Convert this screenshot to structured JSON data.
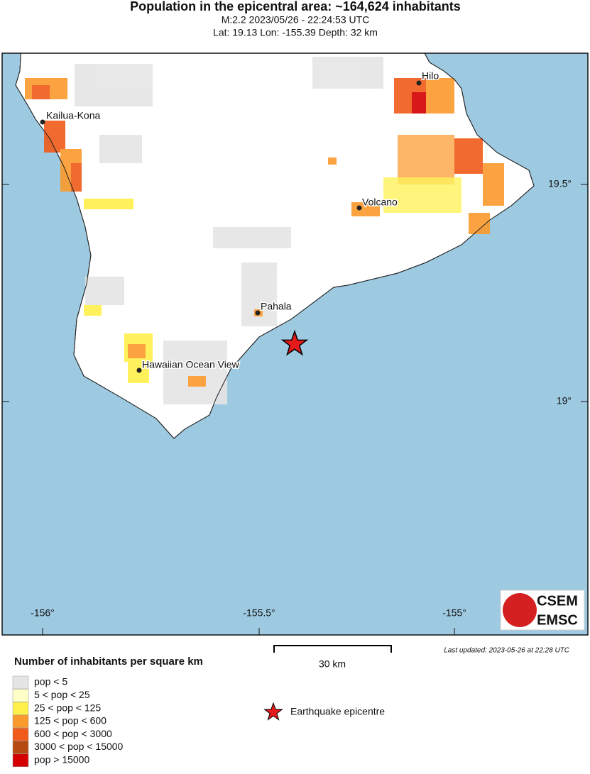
{
  "header": {
    "title": "Population in the epicentral area: ~164,624 inhabitants",
    "event_line": "M:2.2 2023/05/26 - 22:24:53 UTC",
    "location_line": "Lat: 19.13 Lon: -155.39 Depth: 32 km"
  },
  "map": {
    "lat_ticks": [
      "19.5°",
      "19°"
    ],
    "lon_ticks": [
      "-156°",
      "-155.5°",
      "-155°"
    ],
    "cities": [
      "Hilo",
      "Kailua-Kona",
      "Volcano",
      "Pahala",
      "Hawaiian Ocean View"
    ],
    "logo": [
      "CSEM",
      "EMSC"
    ]
  },
  "scale_bar": "30 km",
  "last_updated": "Last updated: 2023-05-26 at 22:28 UTC",
  "legend": {
    "title": "Number of inhabitants per square km",
    "items": [
      {
        "label": "pop < 5",
        "color": "#e5e5e5"
      },
      {
        "label": "5 < pop < 25",
        "color": "#ffffc8"
      },
      {
        "label": "25 < pop < 125",
        "color": "#fff04a"
      },
      {
        "label": "125 < pop < 600",
        "color": "#fb9a2c"
      },
      {
        "label": "600 < pop < 3000",
        "color": "#f05a1a"
      },
      {
        "label": "3000 < pop < 15000",
        "color": "#b5490f"
      },
      {
        "label": "pop > 15000",
        "color": "#d40000"
      }
    ],
    "epicentre": "Earthquake epicentre"
  }
}
